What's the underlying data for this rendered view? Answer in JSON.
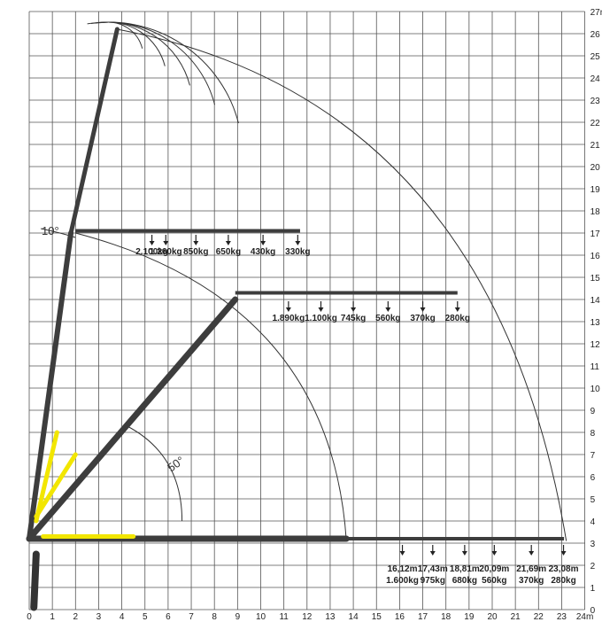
{
  "diagram": {
    "x_ticks": [
      "0",
      "1",
      "2",
      "3",
      "4",
      "5",
      "6",
      "7",
      "8",
      "9",
      "10",
      "11",
      "12",
      "13",
      "14",
      "15",
      "16",
      "17",
      "18",
      "19",
      "20",
      "21",
      "22",
      "23",
      "24m"
    ],
    "y_ticks": [
      "0",
      "1",
      "2",
      "3",
      "4",
      "5",
      "6",
      "7",
      "8",
      "9",
      "10",
      "11",
      "12",
      "13",
      "14",
      "15",
      "16",
      "17",
      "18",
      "19",
      "20",
      "21",
      "22",
      "23",
      "24",
      "25",
      "26",
      "27m"
    ],
    "angle_top": "10°",
    "angle_mid": "50°",
    "loads_top": [
      {
        "x": 5.3,
        "y": 17,
        "load": "2.100kg"
      },
      {
        "x": 5.9,
        "y": 17,
        "load": "1.260kg"
      },
      {
        "x": 7.2,
        "y": 17,
        "load": "850kg"
      },
      {
        "x": 8.6,
        "y": 17,
        "load": "650kg"
      },
      {
        "x": 10.1,
        "y": 17,
        "load": "430kg"
      },
      {
        "x": 11.6,
        "y": 17,
        "load": "330kg"
      }
    ],
    "loads_mid": [
      {
        "x": 11.2,
        "y": 14,
        "load": "1.890kg"
      },
      {
        "x": 12.6,
        "y": 14,
        "load": "1.100kg"
      },
      {
        "x": 14.0,
        "y": 14,
        "load": "745kg"
      },
      {
        "x": 15.5,
        "y": 14,
        "load": "560kg"
      },
      {
        "x": 17.0,
        "y": 14,
        "load": "370kg"
      },
      {
        "x": 18.5,
        "y": 14,
        "load": "280kg"
      }
    ],
    "loads_bottom": [
      {
        "x": 16.12,
        "y": 3,
        "reach": "16,12m",
        "load": "1.600kg"
      },
      {
        "x": 17.43,
        "y": 3,
        "reach": "17,43m",
        "load": "975kg"
      },
      {
        "x": 18.81,
        "y": 3,
        "reach": "18,81m",
        "load": "680kg"
      },
      {
        "x": 20.09,
        "y": 3,
        "reach": "20,09m",
        "load": "560kg"
      },
      {
        "x": 21.69,
        "y": 3,
        "reach": "21,69m",
        "load": "370kg"
      },
      {
        "x": 23.08,
        "y": 3,
        "reach": "23,08m",
        "load": "280kg"
      }
    ],
    "colors": {
      "grid": "#555555",
      "boom_dark": "#3d3d3d",
      "boom_yellow": "#f2e600",
      "arc": "#333333"
    }
  }
}
